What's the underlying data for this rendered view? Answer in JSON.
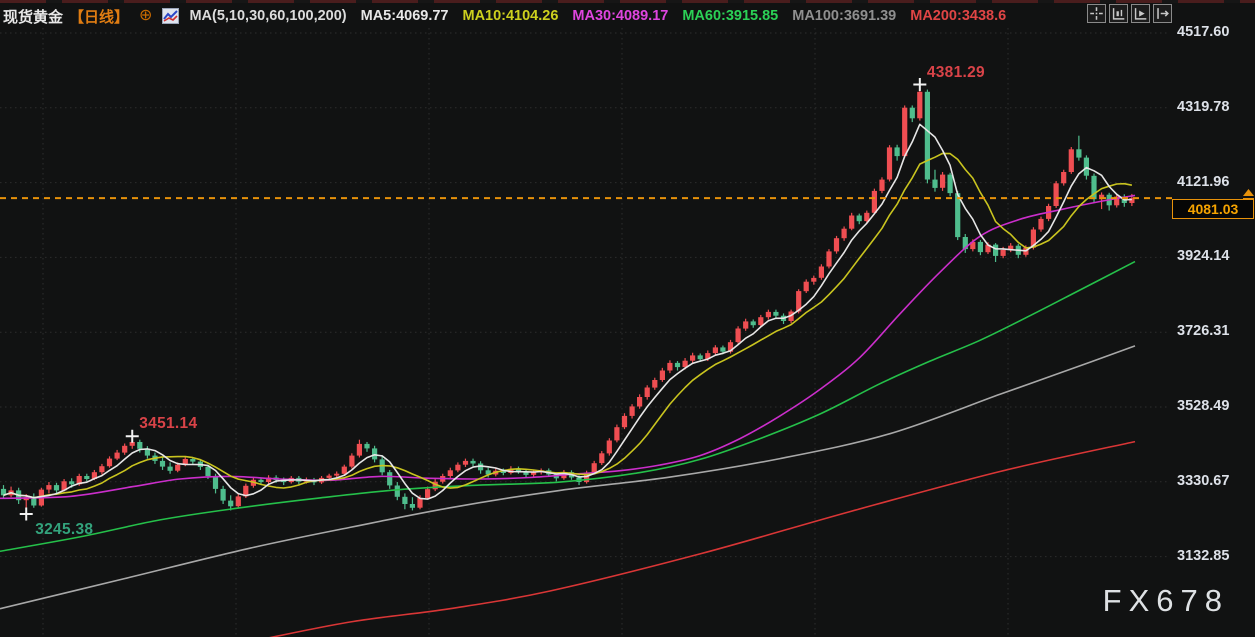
{
  "header": {
    "symbol": "现货黄金",
    "period": "【日线】",
    "add_icon": "⊕",
    "ma_group": "MA(5,10,30,60,100,200)",
    "ma_items": [
      {
        "label": "MA5:4069.77",
        "color": "#e8e8e8"
      },
      {
        "label": "MA10:4104.26",
        "color": "#cdd01e"
      },
      {
        "label": "MA30:4089.17",
        "color": "#df45df"
      },
      {
        "label": "MA60:3915.85",
        "color": "#2bd156"
      },
      {
        "label": "MA100:3691.39",
        "color": "#8f8f8f"
      },
      {
        "label": "MA200:3438.6",
        "color": "#e04545"
      }
    ],
    "toolbar": [
      {
        "name": "move-crosshair-icon"
      },
      {
        "name": "axis-scale-icon"
      },
      {
        "name": "axis-pointer-icon"
      },
      {
        "name": "pop-out-icon"
      }
    ]
  },
  "price_label": {
    "value": "4081.03",
    "color": "#f5a300",
    "line_color": "#e8920a"
  },
  "watermark": "FX678",
  "annotations": [
    {
      "text": "4381.29",
      "price": 4381.29,
      "candle_index": 121,
      "color": "#d94348",
      "placement": "above"
    },
    {
      "text": "3451.14",
      "price": 3451.14,
      "candle_index": 17,
      "color": "#d94348",
      "placement": "above"
    },
    {
      "text": "3245.38",
      "price": 3245.38,
      "candle_index": 3,
      "color": "#33a37c",
      "placement": "below"
    }
  ],
  "chart_data": {
    "type": "candlestick",
    "title": "现货黄金 日线",
    "y_axis": {
      "labels": [
        "4517.60",
        "4319.78",
        "4121.96",
        "3924.14",
        "3726.31",
        "3528.49",
        "3330.67",
        "3132.85"
      ],
      "top_value": 4517.6,
      "step_value": 197.82
    },
    "current_price": 4081.03,
    "up_color": "#ef4e52",
    "down_color": "#4fbd8d",
    "candles": [
      [
        3312,
        3322,
        3288,
        3295
      ],
      [
        3295,
        3318,
        3290,
        3308
      ],
      [
        3308,
        3315,
        3272,
        3282
      ],
      [
        3282,
        3298,
        3245.38,
        3290
      ],
      [
        3290,
        3300,
        3262,
        3268
      ],
      [
        3268,
        3315,
        3265,
        3310
      ],
      [
        3310,
        3330,
        3300,
        3322
      ],
      [
        3322,
        3328,
        3298,
        3308
      ],
      [
        3308,
        3338,
        3305,
        3332
      ],
      [
        3332,
        3340,
        3315,
        3324
      ],
      [
        3324,
        3352,
        3320,
        3346
      ],
      [
        3346,
        3352,
        3332,
        3338
      ],
      [
        3338,
        3362,
        3335,
        3356
      ],
      [
        3356,
        3378,
        3350,
        3372
      ],
      [
        3372,
        3398,
        3368,
        3392
      ],
      [
        3392,
        3415,
        3388,
        3408
      ],
      [
        3408,
        3432,
        3402,
        3426
      ],
      [
        3426,
        3451.14,
        3418,
        3436
      ],
      [
        3436,
        3442,
        3408,
        3418
      ],
      [
        3418,
        3425,
        3392,
        3400
      ],
      [
        3400,
        3408,
        3378,
        3386
      ],
      [
        3386,
        3395,
        3362,
        3371
      ],
      [
        3371,
        3382,
        3352,
        3360
      ],
      [
        3360,
        3382,
        3356,
        3376
      ],
      [
        3376,
        3398,
        3372,
        3391
      ],
      [
        3391,
        3396,
        3376,
        3384
      ],
      [
        3384,
        3390,
        3362,
        3370
      ],
      [
        3370,
        3376,
        3338,
        3346
      ],
      [
        3346,
        3352,
        3300,
        3312
      ],
      [
        3312,
        3320,
        3272,
        3281
      ],
      [
        3281,
        3295,
        3255,
        3266
      ],
      [
        3266,
        3298,
        3262,
        3292
      ],
      [
        3292,
        3326,
        3288,
        3320
      ],
      [
        3320,
        3342,
        3315,
        3336
      ],
      [
        3336,
        3342,
        3322,
        3330
      ],
      [
        3330,
        3348,
        3326,
        3342
      ],
      [
        3342,
        3348,
        3328,
        3335
      ],
      [
        3335,
        3342,
        3322,
        3330
      ],
      [
        3330,
        3346,
        3326,
        3341
      ],
      [
        3341,
        3346,
        3324,
        3331
      ],
      [
        3331,
        3342,
        3326,
        3336
      ],
      [
        3336,
        3341,
        3322,
        3329
      ],
      [
        3329,
        3346,
        3325,
        3341
      ],
      [
        3341,
        3352,
        3336,
        3347
      ],
      [
        3347,
        3358,
        3340,
        3352
      ],
      [
        3352,
        3376,
        3348,
        3371
      ],
      [
        3371,
        3406,
        3366,
        3400
      ],
      [
        3400,
        3442,
        3395,
        3431
      ],
      [
        3431,
        3436,
        3410,
        3419
      ],
      [
        3419,
        3426,
        3382,
        3390
      ],
      [
        3390,
        3398,
        3348,
        3356
      ],
      [
        3356,
        3362,
        3312,
        3321
      ],
      [
        3321,
        3330,
        3282,
        3291
      ],
      [
        3291,
        3300,
        3258,
        3272
      ],
      [
        3272,
        3290,
        3255,
        3262
      ],
      [
        3262,
        3295,
        3258,
        3288
      ],
      [
        3288,
        3318,
        3284,
        3311
      ],
      [
        3311,
        3338,
        3306,
        3331
      ],
      [
        3331,
        3352,
        3326,
        3346
      ],
      [
        3346,
        3368,
        3341,
        3361
      ],
      [
        3361,
        3382,
        3356,
        3376
      ],
      [
        3376,
        3392,
        3370,
        3386
      ],
      [
        3386,
        3392,
        3372,
        3379
      ],
      [
        3379,
        3385,
        3352,
        3361
      ],
      [
        3361,
        3368,
        3342,
        3350
      ],
      [
        3350,
        3366,
        3345,
        3360
      ],
      [
        3360,
        3366,
        3348,
        3354
      ],
      [
        3354,
        3372,
        3350,
        3365
      ],
      [
        3365,
        3371,
        3352,
        3358
      ],
      [
        3358,
        3364,
        3342,
        3349
      ],
      [
        3349,
        3362,
        3344,
        3356
      ],
      [
        3356,
        3366,
        3350,
        3361
      ],
      [
        3361,
        3366,
        3344,
        3350
      ],
      [
        3350,
        3356,
        3332,
        3340
      ],
      [
        3340,
        3362,
        3336,
        3356
      ],
      [
        3356,
        3361,
        3336,
        3342
      ],
      [
        3342,
        3348,
        3322,
        3330
      ],
      [
        3330,
        3360,
        3326,
        3355
      ],
      [
        3355,
        3386,
        3350,
        3380
      ],
      [
        3380,
        3412,
        3375,
        3406
      ],
      [
        3406,
        3446,
        3400,
        3440
      ],
      [
        3440,
        3482,
        3435,
        3475
      ],
      [
        3475,
        3512,
        3470,
        3505
      ],
      [
        3505,
        3536,
        3498,
        3530
      ],
      [
        3530,
        3562,
        3524,
        3555
      ],
      [
        3555,
        3586,
        3548,
        3580
      ],
      [
        3580,
        3606,
        3574,
        3600
      ],
      [
        3600,
        3632,
        3595,
        3625
      ],
      [
        3625,
        3652,
        3618,
        3645
      ],
      [
        3645,
        3650,
        3625,
        3634
      ],
      [
        3634,
        3658,
        3628,
        3651
      ],
      [
        3651,
        3672,
        3645,
        3665
      ],
      [
        3665,
        3670,
        3648,
        3655
      ],
      [
        3655,
        3678,
        3650,
        3671
      ],
      [
        3671,
        3692,
        3665,
        3686
      ],
      [
        3686,
        3691,
        3668,
        3675
      ],
      [
        3675,
        3706,
        3670,
        3700
      ],
      [
        3700,
        3742,
        3696,
        3736
      ],
      [
        3736,
        3762,
        3730,
        3755
      ],
      [
        3755,
        3760,
        3738,
        3745
      ],
      [
        3745,
        3772,
        3740,
        3766
      ],
      [
        3766,
        3786,
        3760,
        3780
      ],
      [
        3780,
        3786,
        3762,
        3770
      ],
      [
        3770,
        3776,
        3748,
        3756
      ],
      [
        3756,
        3786,
        3750,
        3781
      ],
      [
        3781,
        3840,
        3776,
        3835
      ],
      [
        3835,
        3866,
        3830,
        3860
      ],
      [
        3860,
        3876,
        3852,
        3870
      ],
      [
        3870,
        3906,
        3865,
        3900
      ],
      [
        3900,
        3946,
        3895,
        3940
      ],
      [
        3940,
        3981,
        3934,
        3975
      ],
      [
        3975,
        4006,
        3968,
        4000
      ],
      [
        4000,
        4042,
        3996,
        4035
      ],
      [
        4035,
        4040,
        4012,
        4020
      ],
      [
        4020,
        4048,
        4015,
        4042
      ],
      [
        4042,
        4106,
        4038,
        4100
      ],
      [
        4100,
        4136,
        4094,
        4130
      ],
      [
        4130,
        4221,
        4125,
        4215
      ],
      [
        4215,
        4222,
        4180,
        4192
      ],
      [
        4192,
        4326,
        4188,
        4320
      ],
      [
        4320,
        4326,
        4282,
        4292
      ],
      [
        4292,
        4381.29,
        4286,
        4362
      ],
      [
        4362,
        4368,
        4120,
        4130
      ],
      [
        4130,
        4156,
        4098,
        4108
      ],
      [
        4108,
        4150,
        4100,
        4143
      ],
      [
        4143,
        4148,
        4086,
        4094
      ],
      [
        4094,
        4100,
        3970,
        3978
      ],
      [
        3978,
        3986,
        3936,
        3946
      ],
      [
        3946,
        3972,
        3940,
        3965
      ],
      [
        3965,
        3970,
        3930,
        3938
      ],
      [
        3938,
        3964,
        3933,
        3958
      ],
      [
        3958,
        3962,
        3912,
        3928
      ],
      [
        3928,
        3952,
        3922,
        3944
      ],
      [
        3944,
        3962,
        3938,
        3955
      ],
      [
        3955,
        3960,
        3922,
        3931
      ],
      [
        3931,
        3956,
        3926,
        3950
      ],
      [
        3950,
        4004,
        3945,
        3998
      ],
      [
        3998,
        4032,
        3992,
        4026
      ],
      [
        4026,
        4066,
        4020,
        4060
      ],
      [
        4060,
        4126,
        4055,
        4120
      ],
      [
        4120,
        4156,
        4114,
        4150
      ],
      [
        4150,
        4216,
        4145,
        4210
      ],
      [
        4210,
        4246,
        4180,
        4188
      ],
      [
        4188,
        4194,
        4130,
        4140
      ],
      [
        4140,
        4146,
        4068,
        4078
      ],
      [
        4078,
        4096,
        4052,
        4090
      ],
      [
        4090,
        4095,
        4048,
        4062
      ],
      [
        4062,
        4090,
        4056,
        4085
      ],
      [
        4085,
        4091,
        4058,
        4068
      ],
      [
        4068,
        4092,
        4060,
        4081.03
      ]
    ],
    "overlays": [
      {
        "name": "MA5",
        "period": 5,
        "color": "#e6e6e6",
        "computed": true
      },
      {
        "name": "MA10",
        "period": 10,
        "color": "#c9c41f",
        "computed": true
      },
      {
        "name": "MA30",
        "color": "#cb2ecb",
        "points": [
          [
            0,
            3287
          ],
          [
            70,
            3292
          ],
          [
            133,
            3318
          ],
          [
            180,
            3338
          ],
          [
            230,
            3345
          ],
          [
            280,
            3338
          ],
          [
            330,
            3335
          ],
          [
            380,
            3345
          ],
          [
            430,
            3340
          ],
          [
            480,
            3338
          ],
          [
            530,
            3342
          ],
          [
            580,
            3352
          ],
          [
            620,
            3360
          ],
          [
            660,
            3375
          ],
          [
            700,
            3400
          ],
          [
            740,
            3445
          ],
          [
            780,
            3505
          ],
          [
            820,
            3575
          ],
          [
            860,
            3660
          ],
          [
            900,
            3775
          ],
          [
            940,
            3885
          ],
          [
            980,
            3980
          ],
          [
            1020,
            4025
          ],
          [
            1060,
            4050
          ],
          [
            1100,
            4072
          ],
          [
            1135,
            4088
          ]
        ]
      },
      {
        "name": "MA60",
        "color": "#25c04a",
        "points": [
          [
            0,
            3147
          ],
          [
            80,
            3185
          ],
          [
            160,
            3230
          ],
          [
            240,
            3262
          ],
          [
            320,
            3288
          ],
          [
            400,
            3310
          ],
          [
            480,
            3322
          ],
          [
            560,
            3330
          ],
          [
            640,
            3355
          ],
          [
            700,
            3390
          ],
          [
            760,
            3445
          ],
          [
            820,
            3510
          ],
          [
            880,
            3590
          ],
          [
            930,
            3650
          ],
          [
            980,
            3705
          ],
          [
            1030,
            3770
          ],
          [
            1080,
            3838
          ],
          [
            1135,
            3913
          ]
        ]
      },
      {
        "name": "MA100",
        "color": "#a8a8a8",
        "points": [
          [
            0,
            2995
          ],
          [
            125,
            3075
          ],
          [
            250,
            3155
          ],
          [
            350,
            3210
          ],
          [
            450,
            3262
          ],
          [
            560,
            3308
          ],
          [
            670,
            3343
          ],
          [
            780,
            3392
          ],
          [
            890,
            3458
          ],
          [
            1000,
            3562
          ],
          [
            1070,
            3628
          ],
          [
            1135,
            3690
          ]
        ]
      },
      {
        "name": "MA200",
        "color": "#d93636",
        "points": [
          [
            245,
            2905
          ],
          [
            350,
            2960
          ],
          [
            450,
            2995
          ],
          [
            550,
            3042
          ],
          [
            700,
            3140
          ],
          [
            850,
            3252
          ],
          [
            1000,
            3358
          ],
          [
            1135,
            3437
          ]
        ]
      }
    ],
    "price_line": {
      "value": 4081.03,
      "style": "dashed"
    }
  }
}
